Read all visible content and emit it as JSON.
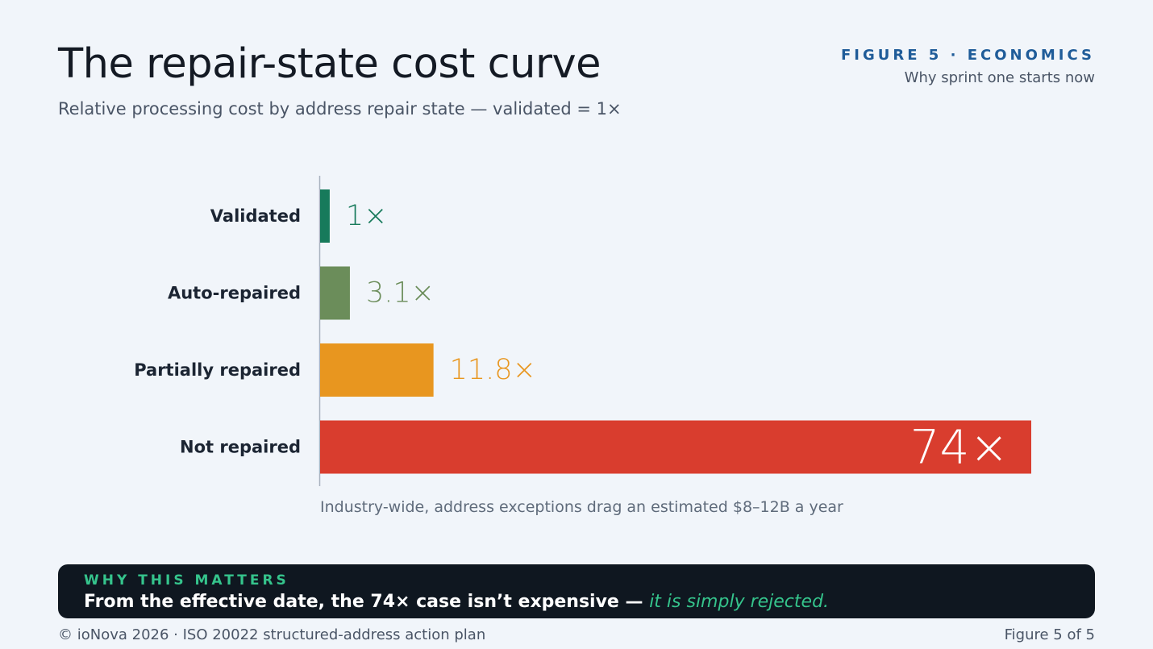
{
  "header": {
    "title": "The repair-state cost curve",
    "subtitle": "Relative processing cost by address repair state — validated = 1×",
    "figure_tag": "FIGURE 5 · ECONOMICS",
    "figure_subtitle": "Why sprint one starts now"
  },
  "chart_data": {
    "type": "bar",
    "orientation": "horizontal",
    "title": "The repair-state cost curve",
    "subtitle": "Relative processing cost by address repair state — validated = 1×",
    "categories": [
      "Validated",
      "Auto-repaired",
      "Partially repaired",
      "Not repaired"
    ],
    "values": [
      1,
      3.1,
      11.8,
      74
    ],
    "value_labels": [
      "1×",
      "3.1×",
      "11.8×",
      "74×"
    ],
    "colors": [
      "#177a5b",
      "#6b8d5a",
      "#e8961f",
      "#d93d2e"
    ],
    "xlim": [
      0,
      74
    ],
    "grid": false,
    "legend": "none",
    "annotation": "Industry-wide, address exceptions drag an estimated $8–12B a year"
  },
  "callout": {
    "label": "WHY THIS MATTERS",
    "text_main": "From the effective date, the 74× case isn’t expensive — ",
    "text_emphasis": "it is simply rejected."
  },
  "footer": {
    "left": "© ioNova 2026 · ISO 20022 structured-address action plan",
    "right": "Figure 5 of 5"
  }
}
